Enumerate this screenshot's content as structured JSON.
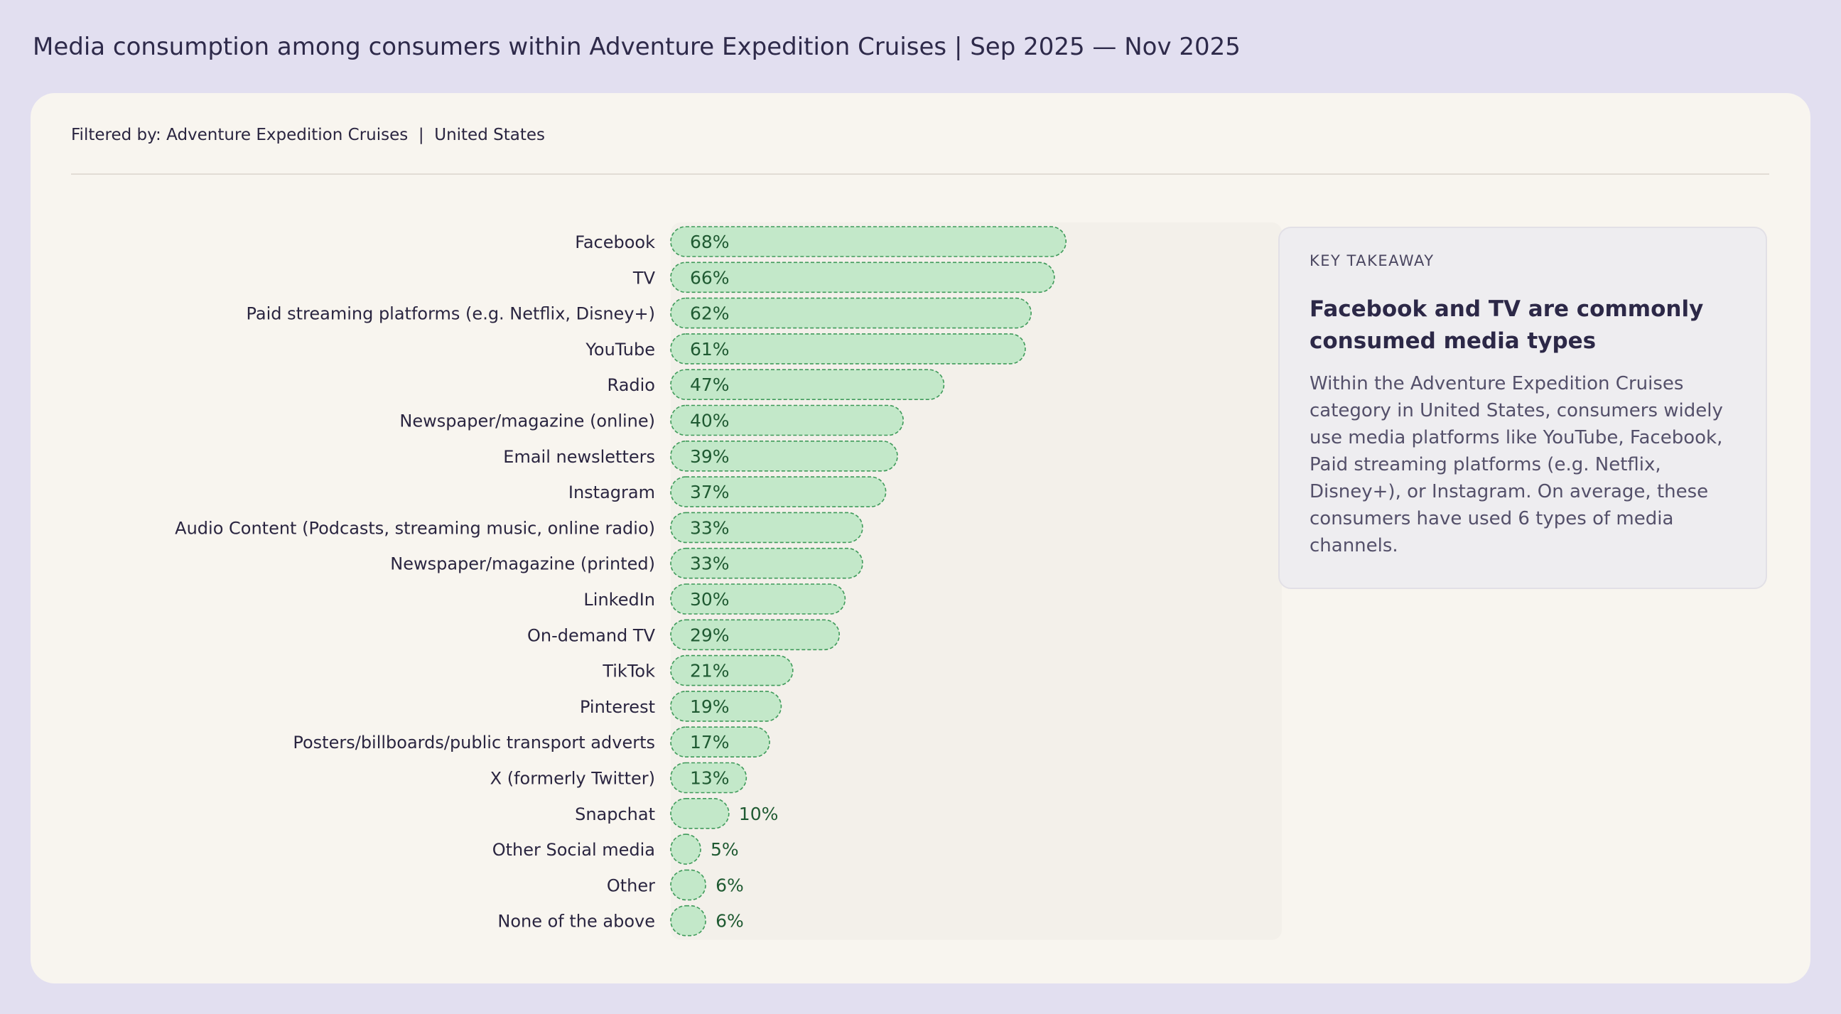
{
  "page": {
    "title": "Media consumption among consumers within Adventure Expedition Cruises | Sep 2025 — Nov 2025",
    "filter_text": "Filtered by: Adventure Expedition Cruises  |  United States"
  },
  "takeaway": {
    "label": "KEY TAKEAWAY",
    "headline": "Facebook and TV are commonly consumed media types",
    "body": "Within the Adventure Expedition Cruises category in United States, consumers widely use media platforms like YouTube, Facebook, Paid streaming platforms (e.g. Netflix, Disney+), or Instagram. On average, these consumers have used 6 types of media channels."
  },
  "colors": {
    "bar_fill": "#c3e8c9",
    "bar_stroke": "#3f9a5a",
    "value_text": "#1f5a32",
    "track": "#f3f0ea",
    "panel": "#f8f5ef",
    "background": "#e2dff0"
  },
  "chart_data": {
    "type": "bar",
    "orientation": "horizontal",
    "categories": [
      "Facebook",
      "TV",
      "Paid streaming platforms (e.g. Netflix, Disney+)",
      "YouTube",
      "Radio",
      "Newspaper/magazine (online)",
      "Email newsletters",
      "Instagram",
      "Audio Content (Podcasts, streaming music, online radio)",
      "Newspaper/magazine (printed)",
      "LinkedIn",
      "On-demand TV",
      "TikTok",
      "Pinterest",
      "Posters/billboards/public transport adverts",
      "X (formerly Twitter)",
      "Snapchat",
      "Other Social media",
      "Other",
      "None of the above"
    ],
    "values": [
      68,
      66,
      62,
      61,
      47,
      40,
      39,
      37,
      33,
      33,
      30,
      29,
      21,
      19,
      17,
      13,
      10,
      5,
      6,
      6
    ],
    "value_labels": [
      "68%",
      "66%",
      "62%",
      "61%",
      "47%",
      "40%",
      "39%",
      "37%",
      "33%",
      "33%",
      "30%",
      "29%",
      "21%",
      "19%",
      "17%",
      "13%",
      "10%",
      "5%",
      "6%",
      "6%"
    ],
    "xlim": [
      0,
      100
    ],
    "grid": false,
    "legend": "none"
  }
}
